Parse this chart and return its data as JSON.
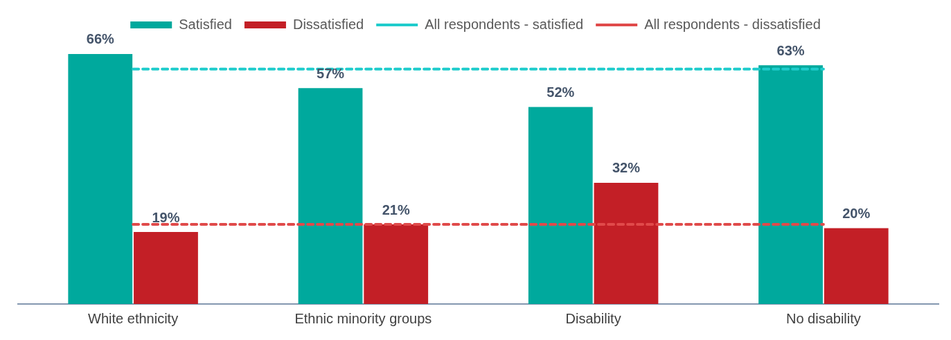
{
  "chart_data": {
    "type": "bar",
    "categories": [
      "White ethnicity",
      "Ethnic minority groups",
      "Disability",
      "No disability"
    ],
    "series": [
      {
        "name": "Satisfied",
        "color": "#00a99d",
        "values": [
          66,
          57,
          52,
          63
        ],
        "value_labels": [
          "66%",
          "57%",
          "52%",
          "63%"
        ]
      },
      {
        "name": "Dissatisfied",
        "color": "#c31f26",
        "values": [
          19,
          21,
          32,
          20
        ],
        "value_labels": [
          "19%",
          "21%",
          "32%",
          "20%"
        ]
      },
      {
        "name": "All respondents - satisfied",
        "type": "line",
        "color": "#1fcccc",
        "line_style": "dashed",
        "marker": "none",
        "values": [
          62,
          62,
          62,
          62
        ]
      },
      {
        "name": "All respondents - dissatisfied",
        "type": "line",
        "color": "#e04a4a",
        "line_style": "dashed",
        "marker": "none",
        "values": [
          21,
          21,
          21,
          21
        ]
      }
    ],
    "tick_labels": "x",
    "grid": false,
    "legend": "top"
  }
}
